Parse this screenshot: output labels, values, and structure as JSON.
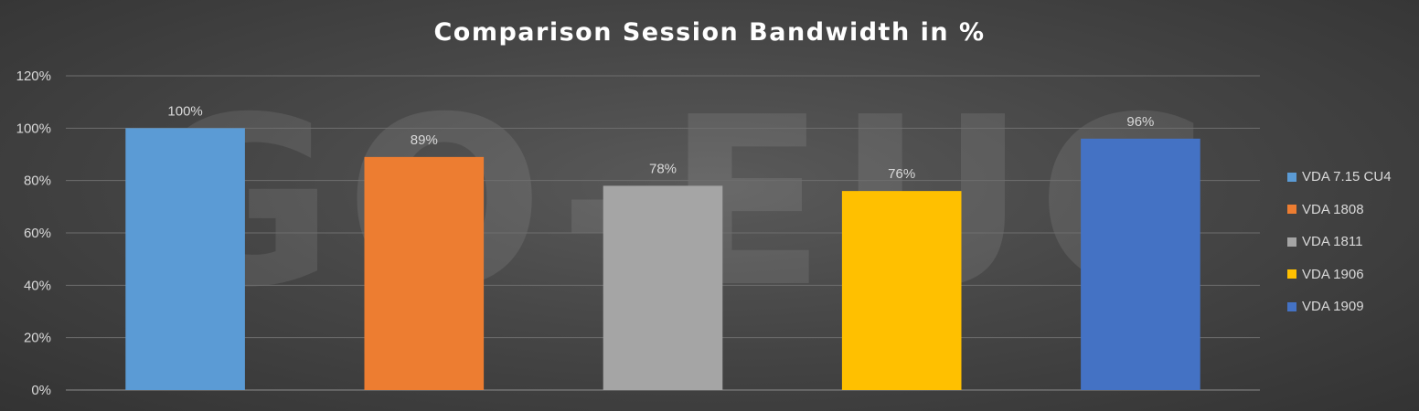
{
  "watermark": "GO-EUC",
  "chart_data": {
    "type": "bar",
    "title": "Comparison Session Bandwidth in %",
    "categories": [
      "VDA 7.15 CU4",
      "VDA 1808",
      "VDA 1811",
      "VDA 1906",
      "VDA 1909"
    ],
    "values": [
      100,
      89,
      78,
      76,
      96
    ],
    "data_labels": [
      "100%",
      "89%",
      "78%",
      "76%",
      "96%"
    ],
    "colors": [
      "#5b9bd5",
      "#ed7d31",
      "#a5a5a5",
      "#ffc000",
      "#4472c4"
    ],
    "ylim": [
      0,
      120
    ],
    "yticks": [
      0,
      20,
      40,
      60,
      80,
      100,
      120
    ],
    "ytick_labels": [
      "0%",
      "20%",
      "40%",
      "60%",
      "80%",
      "100%",
      "120%"
    ],
    "grid": true,
    "legend_position": "right",
    "xlabel": "",
    "ylabel": ""
  }
}
